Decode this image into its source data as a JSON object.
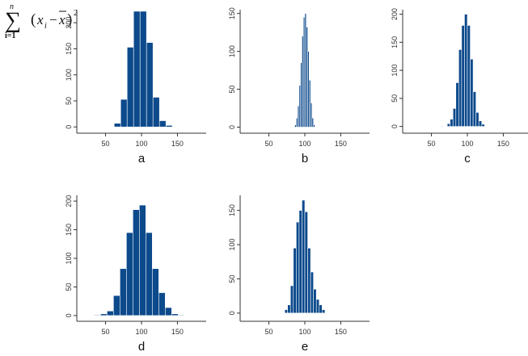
{
  "formula": {
    "sigma": "∑",
    "upper": "n",
    "lower": "i=1",
    "open": "(",
    "xi": "x",
    "xi_sub": "i",
    "minus": "−",
    "xbar": "x",
    "close": ")",
    "power": "2"
  },
  "colors": {
    "bar": "#0d4a8c",
    "axis": "#333333"
  },
  "chart_data": [
    {
      "type": "bar",
      "label": "a",
      "x_ticks": [
        50,
        100,
        150
      ],
      "y_ticks": [
        0,
        50,
        100,
        150,
        200
      ],
      "xlim": [
        10,
        190
      ],
      "ylim": [
        -12,
        225
      ],
      "grid": false,
      "bins": [
        {
          "x0": 62,
          "x1": 71,
          "value": 7
        },
        {
          "x0": 71,
          "x1": 80,
          "value": 53
        },
        {
          "x0": 80,
          "x1": 89,
          "value": 153
        },
        {
          "x0": 89,
          "x1": 98,
          "value": 222
        },
        {
          "x0": 98,
          "x1": 107,
          "value": 222
        },
        {
          "x0": 107,
          "x1": 116,
          "value": 162
        },
        {
          "x0": 116,
          "x1": 125,
          "value": 57
        },
        {
          "x0": 125,
          "x1": 134,
          "value": 12
        },
        {
          "x0": 134,
          "x1": 143,
          "value": 3
        }
      ]
    },
    {
      "type": "bar",
      "label": "b",
      "x_ticks": [
        50,
        100,
        150
      ],
      "y_ticks": [
        0,
        50,
        100,
        150
      ],
      "xlim": [
        10,
        190
      ],
      "ylim": [
        -8,
        155
      ],
      "grid": false,
      "bins": [
        {
          "x0": 86,
          "x1": 88,
          "value": 3
        },
        {
          "x0": 88,
          "x1": 90,
          "value": 12
        },
        {
          "x0": 90,
          "x1": 92,
          "value": 28
        },
        {
          "x0": 92,
          "x1": 94,
          "value": 55
        },
        {
          "x0": 94,
          "x1": 96,
          "value": 85
        },
        {
          "x0": 96,
          "x1": 98,
          "value": 120
        },
        {
          "x0": 98,
          "x1": 100,
          "value": 145
        },
        {
          "x0": 100,
          "x1": 102,
          "value": 150
        },
        {
          "x0": 102,
          "x1": 104,
          "value": 132
        },
        {
          "x0": 104,
          "x1": 106,
          "value": 100
        },
        {
          "x0": 106,
          "x1": 108,
          "value": 62
        },
        {
          "x0": 108,
          "x1": 110,
          "value": 32
        },
        {
          "x0": 110,
          "x1": 112,
          "value": 12
        },
        {
          "x0": 112,
          "x1": 114,
          "value": 3
        }
      ]
    },
    {
      "type": "bar",
      "label": "c",
      "x_ticks": [
        50,
        100,
        150
      ],
      "y_ticks": [
        0,
        50,
        100,
        150,
        200
      ],
      "xlim": [
        10,
        190
      ],
      "ylim": [
        -12,
        208
      ],
      "grid": false,
      "bins": [
        {
          "x0": 64,
          "x1": 66,
          "value": 1
        },
        {
          "x0": 72,
          "x1": 76,
          "value": 5
        },
        {
          "x0": 76,
          "x1": 80,
          "value": 13
        },
        {
          "x0": 80,
          "x1": 84,
          "value": 32
        },
        {
          "x0": 84,
          "x1": 88,
          "value": 78
        },
        {
          "x0": 88,
          "x1": 92,
          "value": 137
        },
        {
          "x0": 92,
          "x1": 96,
          "value": 180
        },
        {
          "x0": 96,
          "x1": 100,
          "value": 200
        },
        {
          "x0": 100,
          "x1": 104,
          "value": 180
        },
        {
          "x0": 104,
          "x1": 108,
          "value": 120
        },
        {
          "x0": 108,
          "x1": 112,
          "value": 62
        },
        {
          "x0": 112,
          "x1": 116,
          "value": 25
        },
        {
          "x0": 116,
          "x1": 120,
          "value": 10
        },
        {
          "x0": 120,
          "x1": 124,
          "value": 4
        }
      ]
    },
    {
      "type": "bar",
      "label": "d",
      "x_ticks": [
        50,
        100,
        150
      ],
      "y_ticks": [
        0,
        50,
        100,
        150,
        200
      ],
      "xlim": [
        10,
        190
      ],
      "ylim": [
        -10,
        210
      ],
      "grid": false,
      "bins": [
        {
          "x0": 34,
          "x1": 43,
          "value": 1
        },
        {
          "x0": 43,
          "x1": 52,
          "value": 3
        },
        {
          "x0": 52,
          "x1": 61,
          "value": 8
        },
        {
          "x0": 61,
          "x1": 70,
          "value": 35
        },
        {
          "x0": 70,
          "x1": 79,
          "value": 82
        },
        {
          "x0": 79,
          "x1": 88,
          "value": 145
        },
        {
          "x0": 88,
          "x1": 97,
          "value": 185
        },
        {
          "x0": 97,
          "x1": 106,
          "value": 193
        },
        {
          "x0": 106,
          "x1": 115,
          "value": 145
        },
        {
          "x0": 115,
          "x1": 124,
          "value": 82
        },
        {
          "x0": 124,
          "x1": 133,
          "value": 40
        },
        {
          "x0": 133,
          "x1": 142,
          "value": 14
        },
        {
          "x0": 142,
          "x1": 151,
          "value": 3
        },
        {
          "x0": 151,
          "x1": 160,
          "value": 1
        }
      ]
    },
    {
      "type": "bar",
      "label": "e",
      "x_ticks": [
        50,
        100,
        150
      ],
      "y_ticks": [
        0,
        50,
        100,
        150
      ],
      "xlim": [
        10,
        190
      ],
      "ylim": [
        -12,
        172
      ],
      "grid": false,
      "bins": [
        {
          "x0": 72,
          "x1": 76,
          "value": 5
        },
        {
          "x0": 76,
          "x1": 80,
          "value": 12
        },
        {
          "x0": 80,
          "x1": 84,
          "value": 40
        },
        {
          "x0": 84,
          "x1": 88,
          "value": 95
        },
        {
          "x0": 88,
          "x1": 92,
          "value": 133
        },
        {
          "x0": 92,
          "x1": 96,
          "value": 150
        },
        {
          "x0": 96,
          "x1": 100,
          "value": 165
        },
        {
          "x0": 100,
          "x1": 104,
          "value": 148
        },
        {
          "x0": 104,
          "x1": 108,
          "value": 95
        },
        {
          "x0": 108,
          "x1": 112,
          "value": 60
        },
        {
          "x0": 112,
          "x1": 116,
          "value": 35
        },
        {
          "x0": 116,
          "x1": 120,
          "value": 20
        },
        {
          "x0": 120,
          "x1": 124,
          "value": 12
        },
        {
          "x0": 124,
          "x1": 128,
          "value": 5
        }
      ]
    }
  ]
}
